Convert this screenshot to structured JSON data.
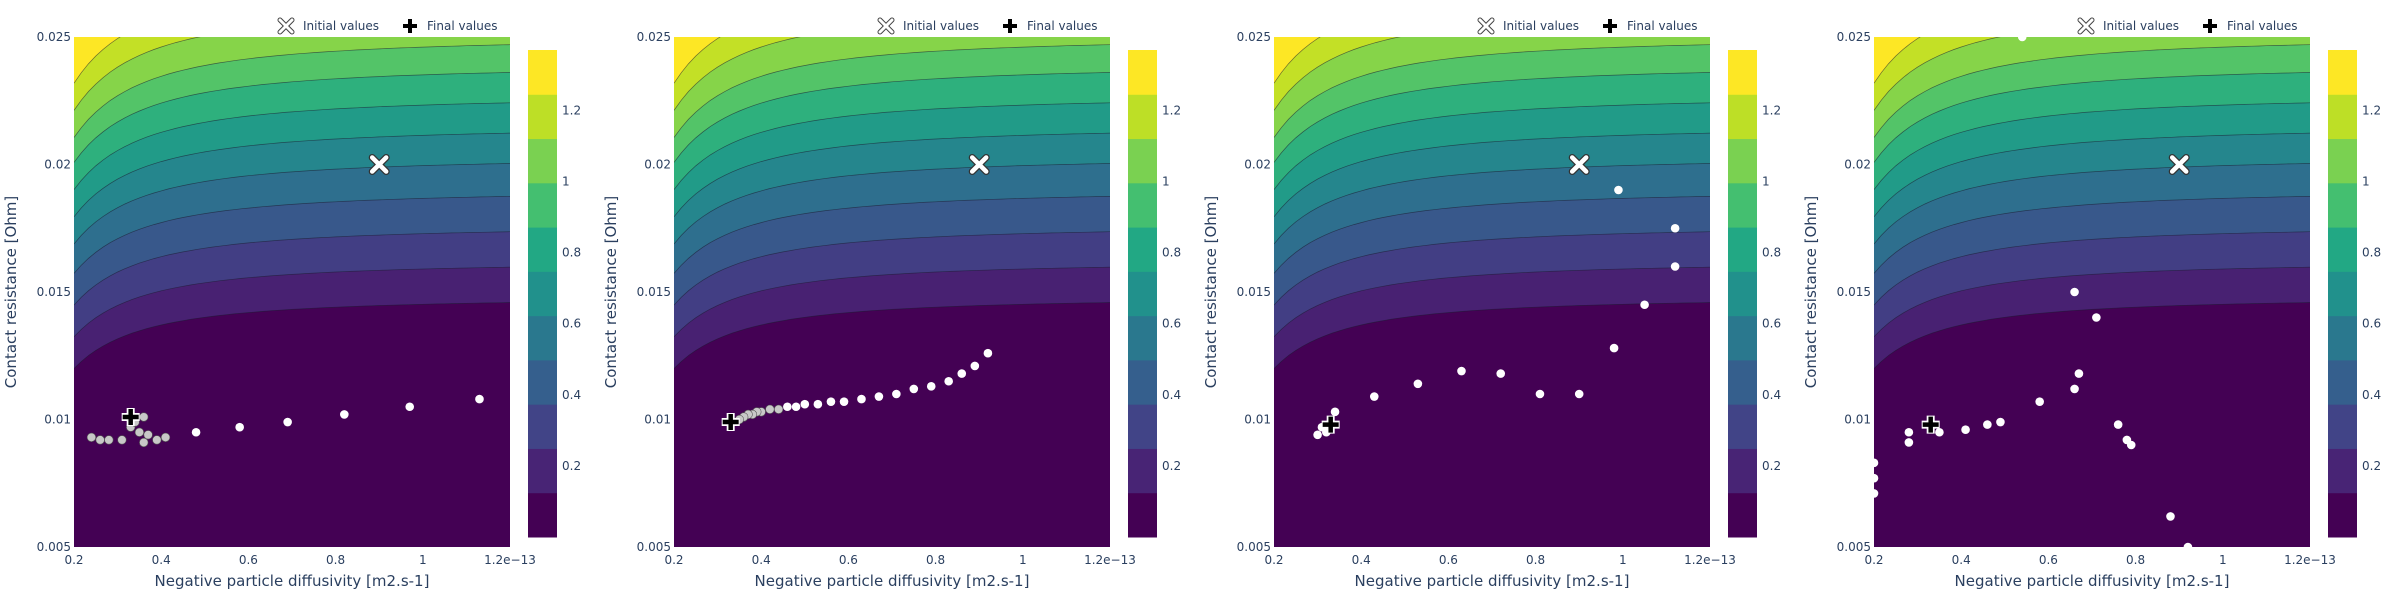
{
  "legend": {
    "initial_label": "Initial values",
    "final_label": "Final values"
  },
  "axes": {
    "xlabel": "Negative particle diffusivity [m2.s-1]",
    "ylabel": "Contact resistance [Ohm]",
    "x_ticks": [
      "0.2",
      "0.4",
      "0.6",
      "0.8",
      "1",
      "1.2e−13"
    ],
    "y_ticks": [
      "0.005",
      "0.01",
      "0.015",
      "0.02",
      "0.025"
    ],
    "xlim": [
      0.2,
      1.2
    ],
    "ylim": [
      0.005,
      0.025
    ],
    "x_scale": "1e-13"
  },
  "colorbar": {
    "ticks": [
      "0.2",
      "0.4",
      "0.6",
      "0.8",
      "1",
      "1.2"
    ],
    "range": [
      0,
      1.37
    ],
    "colors": [
      "#440154",
      "#482475",
      "#414487",
      "#355f8d",
      "#2a788e",
      "#21918c",
      "#22a884",
      "#44bf70",
      "#7ad151",
      "#bddf26",
      "#fde725"
    ]
  },
  "colors": {
    "axis_text": "#2a3f5f",
    "trace_point": "#ffffff",
    "trace_point_dense": "#c8c8c8",
    "marker_fill": "#ffffff",
    "marker_final_fill": "#000000"
  },
  "chart_data": [
    {
      "type": "contour",
      "initial": {
        "x": 0.9,
        "y": 0.02
      },
      "final": {
        "x": 0.33,
        "y": 0.0101
      },
      "trace": [
        {
          "x": 1.13,
          "y": 0.0108
        },
        {
          "x": 0.97,
          "y": 0.0105
        },
        {
          "x": 0.82,
          "y": 0.0102
        },
        {
          "x": 0.69,
          "y": 0.0099
        },
        {
          "x": 0.58,
          "y": 0.0097
        },
        {
          "x": 0.48,
          "y": 0.0095
        },
        {
          "x": 0.41,
          "y": 0.0093
        },
        {
          "x": 0.37,
          "y": 0.0094
        },
        {
          "x": 0.35,
          "y": 0.0095
        },
        {
          "x": 0.33,
          "y": 0.0097
        },
        {
          "x": 0.31,
          "y": 0.0092
        },
        {
          "x": 0.28,
          "y": 0.0092
        },
        {
          "x": 0.26,
          "y": 0.0092
        },
        {
          "x": 0.24,
          "y": 0.0093
        },
        {
          "x": 0.36,
          "y": 0.0091
        },
        {
          "x": 0.39,
          "y": 0.0092
        },
        {
          "x": 0.34,
          "y": 0.0099
        },
        {
          "x": 0.36,
          "y": 0.0101
        }
      ]
    },
    {
      "type": "contour",
      "initial": {
        "x": 0.9,
        "y": 0.02
      },
      "final": {
        "x": 0.33,
        "y": 0.0099
      },
      "trace": [
        {
          "x": 0.92,
          "y": 0.0126
        },
        {
          "x": 0.89,
          "y": 0.0121
        },
        {
          "x": 0.86,
          "y": 0.0118
        },
        {
          "x": 0.83,
          "y": 0.0115
        },
        {
          "x": 0.79,
          "y": 0.0113
        },
        {
          "x": 0.75,
          "y": 0.0112
        },
        {
          "x": 0.71,
          "y": 0.011
        },
        {
          "x": 0.67,
          "y": 0.0109
        },
        {
          "x": 0.63,
          "y": 0.0108
        },
        {
          "x": 0.59,
          "y": 0.0107
        },
        {
          "x": 0.56,
          "y": 0.0107
        },
        {
          "x": 0.53,
          "y": 0.0106
        },
        {
          "x": 0.5,
          "y": 0.0106
        },
        {
          "x": 0.48,
          "y": 0.0105
        },
        {
          "x": 0.46,
          "y": 0.0105
        },
        {
          "x": 0.44,
          "y": 0.0104
        },
        {
          "x": 0.42,
          "y": 0.0104
        },
        {
          "x": 0.4,
          "y": 0.0103
        },
        {
          "x": 0.39,
          "y": 0.0103
        },
        {
          "x": 0.38,
          "y": 0.0102
        },
        {
          "x": 0.37,
          "y": 0.0102
        },
        {
          "x": 0.36,
          "y": 0.0101
        },
        {
          "x": 0.35,
          "y": 0.01
        }
      ]
    },
    {
      "type": "contour",
      "initial": {
        "x": 0.9,
        "y": 0.02
      },
      "final": {
        "x": 0.33,
        "y": 0.0098
      },
      "trace": [
        {
          "x": 0.99,
          "y": 0.019
        },
        {
          "x": 1.12,
          "y": 0.0175
        },
        {
          "x": 1.12,
          "y": 0.016
        },
        {
          "x": 1.05,
          "y": 0.0145
        },
        {
          "x": 0.98,
          "y": 0.0128
        },
        {
          "x": 0.9,
          "y": 0.011
        },
        {
          "x": 0.81,
          "y": 0.011
        },
        {
          "x": 0.72,
          "y": 0.0118
        },
        {
          "x": 0.63,
          "y": 0.0119
        },
        {
          "x": 0.53,
          "y": 0.0114
        },
        {
          "x": 0.43,
          "y": 0.0109
        },
        {
          "x": 0.34,
          "y": 0.0103
        },
        {
          "x": 0.32,
          "y": 0.0095
        },
        {
          "x": 0.3,
          "y": 0.0094
        },
        {
          "x": 0.31,
          "y": 0.0097
        }
      ]
    },
    {
      "type": "contour",
      "initial": {
        "x": 0.9,
        "y": 0.02
      },
      "final": {
        "x": 0.33,
        "y": 0.0098
      },
      "trace": [
        {
          "x": 0.54,
          "y": 0.025
        },
        {
          "x": 0.66,
          "y": 0.015
        },
        {
          "x": 0.71,
          "y": 0.014
        },
        {
          "x": 0.67,
          "y": 0.0118
        },
        {
          "x": 0.66,
          "y": 0.0112
        },
        {
          "x": 0.58,
          "y": 0.0107
        },
        {
          "x": 0.49,
          "y": 0.0099
        },
        {
          "x": 0.46,
          "y": 0.0098
        },
        {
          "x": 0.41,
          "y": 0.0096
        },
        {
          "x": 0.35,
          "y": 0.0095
        },
        {
          "x": 0.28,
          "y": 0.0095
        },
        {
          "x": 0.28,
          "y": 0.0091
        },
        {
          "x": 0.2,
          "y": 0.0083
        },
        {
          "x": 0.2,
          "y": 0.0077
        },
        {
          "x": 0.2,
          "y": 0.0071
        },
        {
          "x": 0.76,
          "y": 0.0098
        },
        {
          "x": 0.78,
          "y": 0.0092
        },
        {
          "x": 0.79,
          "y": 0.009
        },
        {
          "x": 0.88,
          "y": 0.0062
        },
        {
          "x": 0.92,
          "y": 0.005
        }
      ]
    }
  ]
}
